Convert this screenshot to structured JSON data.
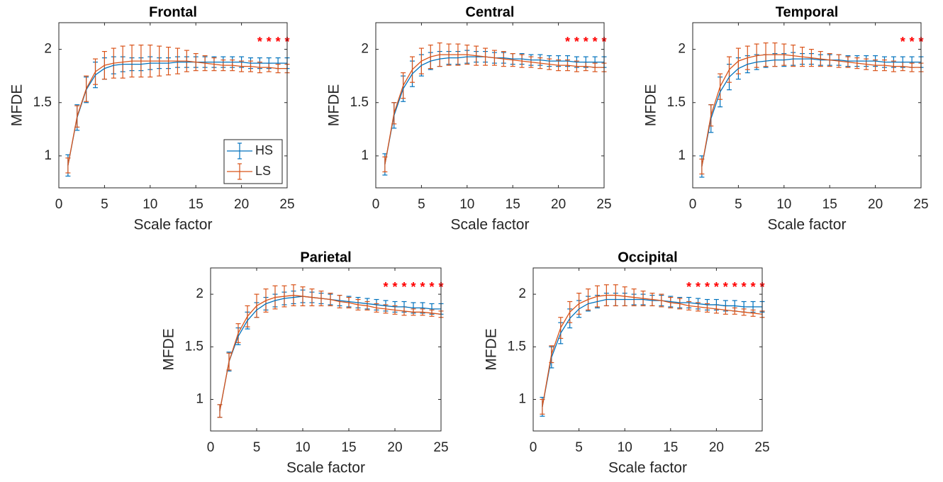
{
  "chart_data": [
    {
      "type": "line",
      "title": "Frontal",
      "xlabel": "Scale factor",
      "ylabel": "MFDE",
      "x": [
        1,
        2,
        3,
        4,
        5,
        6,
        7,
        8,
        9,
        10,
        11,
        12,
        13,
        14,
        15,
        16,
        17,
        18,
        19,
        20,
        21,
        22,
        23,
        24,
        25
      ],
      "xlim": [
        0,
        25
      ],
      "ylim": [
        0.7,
        2.25
      ],
      "xticks": [
        0,
        5,
        10,
        15,
        20,
        25
      ],
      "yticks": [
        1,
        1.5,
        2
      ],
      "legend": "lower right",
      "significance": {
        "label": "*",
        "x": [
          22,
          23,
          24,
          25
        ],
        "color": "#ff0000"
      },
      "series": [
        {
          "name": "HS",
          "color": "#0072bd",
          "values": [
            0.91,
            1.36,
            1.62,
            1.76,
            1.82,
            1.85,
            1.86,
            1.86,
            1.86,
            1.87,
            1.87,
            1.87,
            1.88,
            1.88,
            1.88,
            1.88,
            1.88,
            1.88,
            1.88,
            1.88,
            1.87,
            1.87,
            1.87,
            1.87,
            1.87
          ],
          "errors": [
            0.1,
            0.12,
            0.12,
            0.12,
            0.1,
            0.08,
            0.07,
            0.06,
            0.06,
            0.06,
            0.05,
            0.05,
            0.05,
            0.05,
            0.05,
            0.05,
            0.05,
            0.05,
            0.05,
            0.05,
            0.05,
            0.05,
            0.05,
            0.05,
            0.05
          ]
        },
        {
          "name": "LS",
          "color": "#d95319",
          "values": [
            0.91,
            1.37,
            1.63,
            1.79,
            1.85,
            1.87,
            1.88,
            1.89,
            1.89,
            1.89,
            1.89,
            1.89,
            1.89,
            1.89,
            1.88,
            1.87,
            1.86,
            1.85,
            1.85,
            1.84,
            1.84,
            1.83,
            1.83,
            1.82,
            1.82
          ],
          "errors": [
            0.07,
            0.1,
            0.12,
            0.12,
            0.13,
            0.14,
            0.15,
            0.15,
            0.15,
            0.15,
            0.14,
            0.13,
            0.12,
            0.1,
            0.08,
            0.07,
            0.06,
            0.05,
            0.05,
            0.05,
            0.05,
            0.05,
            0.04,
            0.04,
            0.04
          ]
        }
      ]
    },
    {
      "type": "line",
      "title": "Central",
      "xlabel": "Scale factor",
      "ylabel": "MFDE",
      "x": [
        1,
        2,
        3,
        4,
        5,
        6,
        7,
        8,
        9,
        10,
        11,
        12,
        13,
        14,
        15,
        16,
        17,
        18,
        19,
        20,
        21,
        22,
        23,
        24,
        25
      ],
      "xlim": [
        0,
        25
      ],
      "ylim": [
        0.7,
        2.25
      ],
      "xticks": [
        0,
        5,
        10,
        15,
        20,
        25
      ],
      "yticks": [
        1,
        1.5,
        2
      ],
      "significance": {
        "label": "*",
        "x": [
          21,
          22,
          23,
          24,
          25
        ],
        "color": "#ff0000"
      },
      "series": [
        {
          "name": "HS",
          "color": "#0072bd",
          "values": [
            0.92,
            1.38,
            1.63,
            1.77,
            1.85,
            1.89,
            1.91,
            1.92,
            1.92,
            1.93,
            1.93,
            1.93,
            1.92,
            1.92,
            1.91,
            1.91,
            1.9,
            1.9,
            1.89,
            1.89,
            1.89,
            1.88,
            1.88,
            1.88,
            1.88
          ],
          "errors": [
            0.1,
            0.12,
            0.12,
            0.12,
            0.1,
            0.08,
            0.07,
            0.06,
            0.06,
            0.06,
            0.05,
            0.05,
            0.05,
            0.05,
            0.05,
            0.05,
            0.05,
            0.05,
            0.05,
            0.05,
            0.05,
            0.05,
            0.05,
            0.05,
            0.05
          ]
        },
        {
          "name": "LS",
          "color": "#d95319",
          "values": [
            0.92,
            1.4,
            1.66,
            1.81,
            1.89,
            1.93,
            1.95,
            1.95,
            1.95,
            1.95,
            1.94,
            1.93,
            1.92,
            1.91,
            1.9,
            1.89,
            1.88,
            1.87,
            1.86,
            1.85,
            1.85,
            1.84,
            1.84,
            1.83,
            1.83
          ],
          "errors": [
            0.07,
            0.1,
            0.12,
            0.12,
            0.12,
            0.11,
            0.11,
            0.1,
            0.1,
            0.09,
            0.09,
            0.08,
            0.07,
            0.07,
            0.06,
            0.06,
            0.05,
            0.05,
            0.05,
            0.05,
            0.05,
            0.05,
            0.04,
            0.04,
            0.04
          ]
        }
      ]
    },
    {
      "type": "line",
      "title": "Temporal",
      "xlabel": "Scale factor",
      "ylabel": "MFDE",
      "x": [
        1,
        2,
        3,
        4,
        5,
        6,
        7,
        8,
        9,
        10,
        11,
        12,
        13,
        14,
        15,
        16,
        17,
        18,
        19,
        20,
        21,
        22,
        23,
        24,
        25
      ],
      "xlim": [
        0,
        25
      ],
      "ylim": [
        0.7,
        2.25
      ],
      "xticks": [
        0,
        5,
        10,
        15,
        20,
        25
      ],
      "yticks": [
        1,
        1.5,
        2
      ],
      "significance": {
        "label": "*",
        "x": [
          23,
          24,
          25
        ],
        "color": "#ff0000"
      },
      "series": [
        {
          "name": "HS",
          "color": "#0072bd",
          "values": [
            0.9,
            1.35,
            1.6,
            1.74,
            1.82,
            1.86,
            1.88,
            1.89,
            1.9,
            1.9,
            1.91,
            1.91,
            1.91,
            1.9,
            1.9,
            1.9,
            1.89,
            1.89,
            1.89,
            1.89,
            1.88,
            1.88,
            1.88,
            1.88,
            1.88
          ],
          "errors": [
            0.1,
            0.13,
            0.14,
            0.12,
            0.1,
            0.08,
            0.07,
            0.06,
            0.06,
            0.06,
            0.06,
            0.05,
            0.05,
            0.05,
            0.05,
            0.05,
            0.05,
            0.05,
            0.05,
            0.05,
            0.05,
            0.05,
            0.05,
            0.05,
            0.05
          ]
        },
        {
          "name": "LS",
          "color": "#d95319",
          "values": [
            0.9,
            1.38,
            1.65,
            1.81,
            1.89,
            1.92,
            1.94,
            1.95,
            1.95,
            1.95,
            1.94,
            1.93,
            1.92,
            1.91,
            1.9,
            1.89,
            1.88,
            1.87,
            1.86,
            1.85,
            1.85,
            1.84,
            1.84,
            1.83,
            1.83
          ],
          "errors": [
            0.07,
            0.1,
            0.12,
            0.12,
            0.12,
            0.11,
            0.11,
            0.11,
            0.11,
            0.1,
            0.1,
            0.09,
            0.08,
            0.07,
            0.06,
            0.06,
            0.05,
            0.05,
            0.05,
            0.05,
            0.05,
            0.05,
            0.04,
            0.04,
            0.04
          ]
        }
      ]
    },
    {
      "type": "line",
      "title": "Parietal",
      "xlabel": "Scale factor",
      "ylabel": "MFDE",
      "x": [
        1,
        2,
        3,
        4,
        5,
        6,
        7,
        8,
        9,
        10,
        11,
        12,
        13,
        14,
        15,
        16,
        17,
        18,
        19,
        20,
        21,
        22,
        23,
        24,
        25
      ],
      "xlim": [
        0,
        25
      ],
      "ylim": [
        0.7,
        2.25
      ],
      "xticks": [
        0,
        5,
        10,
        15,
        20,
        25
      ],
      "yticks": [
        1,
        1.5,
        2
      ],
      "significance": {
        "label": "*",
        "x": [
          19,
          20,
          21,
          22,
          23,
          24,
          25
        ],
        "color": "#ff0000"
      },
      "series": [
        {
          "name": "HS",
          "color": "#0072bd",
          "values": [
            0.89,
            1.36,
            1.6,
            1.75,
            1.85,
            1.91,
            1.94,
            1.96,
            1.97,
            1.98,
            1.97,
            1.96,
            1.95,
            1.94,
            1.93,
            1.92,
            1.91,
            1.9,
            1.89,
            1.88,
            1.88,
            1.87,
            1.87,
            1.86,
            1.86
          ],
          "errors": [
            0.06,
            0.09,
            0.08,
            0.08,
            0.07,
            0.06,
            0.06,
            0.06,
            0.06,
            0.06,
            0.05,
            0.05,
            0.05,
            0.05,
            0.05,
            0.05,
            0.05,
            0.05,
            0.05,
            0.05,
            0.05,
            0.05,
            0.05,
            0.05,
            0.05
          ]
        },
        {
          "name": "LS",
          "color": "#d95319",
          "values": [
            0.89,
            1.36,
            1.63,
            1.79,
            1.89,
            1.94,
            1.97,
            1.98,
            1.99,
            1.98,
            1.97,
            1.96,
            1.95,
            1.93,
            1.92,
            1.9,
            1.89,
            1.87,
            1.86,
            1.85,
            1.84,
            1.83,
            1.83,
            1.82,
            1.81
          ],
          "errors": [
            0.06,
            0.08,
            0.09,
            0.1,
            0.11,
            0.11,
            0.11,
            0.1,
            0.1,
            0.09,
            0.08,
            0.07,
            0.06,
            0.06,
            0.05,
            0.05,
            0.04,
            0.04,
            0.04,
            0.04,
            0.04,
            0.03,
            0.03,
            0.03,
            0.03
          ]
        }
      ]
    },
    {
      "type": "line",
      "title": "Occipital",
      "xlabel": "Scale factor",
      "ylabel": "MFDE",
      "x": [
        1,
        2,
        3,
        4,
        5,
        6,
        7,
        8,
        9,
        10,
        11,
        12,
        13,
        14,
        15,
        16,
        17,
        18,
        19,
        20,
        21,
        22,
        23,
        24,
        25
      ],
      "xlim": [
        0,
        25
      ],
      "ylim": [
        0.7,
        2.25
      ],
      "xticks": [
        0,
        5,
        10,
        15,
        20,
        25
      ],
      "yticks": [
        1,
        1.5,
        2
      ],
      "significance": {
        "label": "*",
        "x": [
          17,
          18,
          19,
          20,
          21,
          22,
          23,
          24,
          25
        ],
        "color": "#ff0000"
      },
      "series": [
        {
          "name": "HS",
          "color": "#0072bd",
          "values": [
            0.93,
            1.4,
            1.63,
            1.77,
            1.86,
            1.91,
            1.93,
            1.95,
            1.95,
            1.95,
            1.95,
            1.95,
            1.94,
            1.94,
            1.93,
            1.92,
            1.92,
            1.91,
            1.9,
            1.9,
            1.89,
            1.89,
            1.88,
            1.88,
            1.88
          ],
          "errors": [
            0.09,
            0.1,
            0.1,
            0.09,
            0.08,
            0.07,
            0.06,
            0.06,
            0.06,
            0.06,
            0.05,
            0.05,
            0.05,
            0.05,
            0.05,
            0.05,
            0.05,
            0.05,
            0.05,
            0.05,
            0.05,
            0.05,
            0.05,
            0.05,
            0.05
          ]
        },
        {
          "name": "LS",
          "color": "#d95319",
          "values": [
            0.93,
            1.43,
            1.68,
            1.83,
            1.91,
            1.95,
            1.98,
            1.99,
            1.99,
            1.98,
            1.97,
            1.96,
            1.95,
            1.94,
            1.92,
            1.91,
            1.89,
            1.88,
            1.87,
            1.86,
            1.85,
            1.84,
            1.83,
            1.82,
            1.81
          ],
          "errors": [
            0.07,
            0.08,
            0.1,
            0.1,
            0.1,
            0.1,
            0.1,
            0.1,
            0.1,
            0.09,
            0.08,
            0.07,
            0.06,
            0.06,
            0.05,
            0.05,
            0.04,
            0.04,
            0.04,
            0.04,
            0.04,
            0.03,
            0.03,
            0.03,
            0.03
          ]
        }
      ]
    }
  ]
}
